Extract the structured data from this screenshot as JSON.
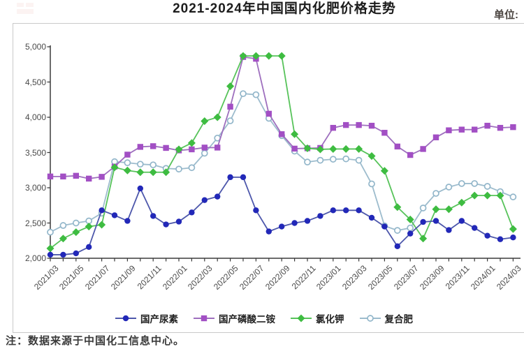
{
  "title": "2021-2024年中国国内化肥价格走势",
  "unit_label": "单位:",
  "source_note": "注：数据来源于中国化工信息中心。",
  "chart_data": {
    "type": "line",
    "title": "2021-2024年中国国内化肥价格走势",
    "xlabel": "",
    "ylabel": "",
    "ylim": [
      2000,
      5000
    ],
    "grid": false,
    "legend_position": "bottom",
    "y_tick_labels": [
      "2,000",
      "2,500",
      "3,000",
      "3,500",
      "4,000",
      "4,500",
      "5,000"
    ],
    "y_tick_values": [
      2000,
      2500,
      3000,
      3500,
      4000,
      4500,
      5000
    ],
    "x_label_every": 2,
    "x": [
      "2021/03",
      "2021/04",
      "2021/05",
      "2021/06",
      "2021/07",
      "2021/08",
      "2021/09",
      "2021/10",
      "2021/11",
      "2021/12",
      "2022/01",
      "2022/02",
      "2022/03",
      "2022/04",
      "2022/05",
      "2022/06",
      "2022/07",
      "2022/08",
      "2022/09",
      "2022/10",
      "2022/11",
      "2022/12",
      "2023/01",
      "2023/02",
      "2023/03",
      "2023/04",
      "2023/05",
      "2023/06",
      "2023/07",
      "2023/08",
      "2023/09",
      "2023/10",
      "2023/11",
      "2023/12",
      "2024/01",
      "2024/02",
      "2024/03"
    ],
    "series": [
      {
        "name": "国产尿素",
        "marker": "circle",
        "marker_color": "#2228b8",
        "line_color": "#4d57ab",
        "values": [
          2050,
          2050,
          2070,
          2160,
          2680,
          2610,
          2530,
          2990,
          2600,
          2480,
          2520,
          2650,
          2825,
          2875,
          3150,
          3150,
          2680,
          2380,
          2450,
          2500,
          2530,
          2600,
          2680,
          2680,
          2680,
          2575,
          2450,
          2170,
          2350,
          2515,
          2530,
          2400,
          2530,
          2430,
          2320,
          2270,
          2295
        ]
      },
      {
        "name": "国产磷酸二铵",
        "marker": "square",
        "marker_color": "#a24fc4",
        "line_color": "#9e6fbe",
        "values": [
          3160,
          3160,
          3170,
          3130,
          3155,
          3300,
          3470,
          3580,
          3590,
          3565,
          3530,
          3545,
          3570,
          3570,
          4150,
          4855,
          4830,
          4050,
          3760,
          3555,
          3560,
          3565,
          3850,
          3890,
          3890,
          3880,
          3780,
          3585,
          3465,
          3550,
          3715,
          3815,
          3825,
          3825,
          3880,
          3850,
          3860
        ]
      },
      {
        "name": "氯化钾",
        "marker": "diamond",
        "marker_color": "#3ebc41",
        "line_color": "#57c35a",
        "values": [
          2140,
          2280,
          2370,
          2450,
          2475,
          3290,
          3245,
          3220,
          3220,
          3220,
          3545,
          3635,
          3945,
          4000,
          4440,
          4870,
          4870,
          4870,
          4870,
          3760,
          3560,
          3545,
          3550,
          3550,
          3550,
          3450,
          3240,
          2725,
          2550,
          2280,
          2695,
          2695,
          2790,
          2890,
          2890,
          2890,
          2415
        ]
      },
      {
        "name": "复合肥",
        "marker": "open-circle",
        "marker_color": "#92b6ca",
        "line_color": "#9dbccd",
        "values": [
          2370,
          2465,
          2500,
          2530,
          2640,
          3370,
          3355,
          3335,
          3325,
          3275,
          3265,
          3285,
          3490,
          3705,
          3950,
          4335,
          4320,
          3985,
          3740,
          3520,
          3365,
          3390,
          3405,
          3410,
          3390,
          3055,
          2460,
          2395,
          2430,
          2713,
          2920,
          3010,
          3060,
          3060,
          3020,
          2945,
          2870
        ]
      }
    ]
  }
}
